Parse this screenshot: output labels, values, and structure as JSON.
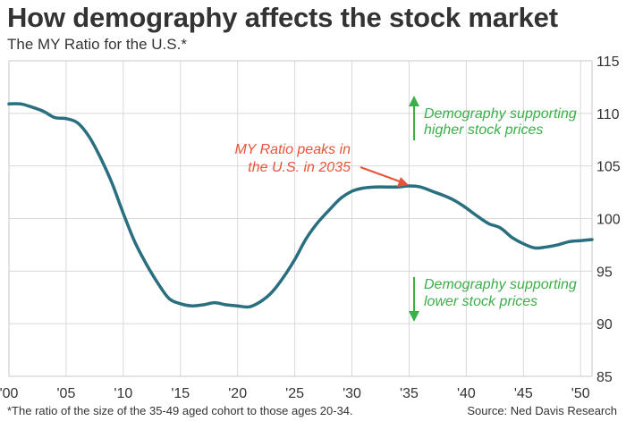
{
  "header": {
    "title": "How demography affects the stock market",
    "subtitle": "The MY Ratio for the U.S.*"
  },
  "footer": {
    "footnote": "*The ratio of the size of the 35-49 aged cohort to those ages 20-34.",
    "source": "Source: Ned Davis Research"
  },
  "colors": {
    "line": "#2a6f7f",
    "grid": "#d9d9d9",
    "frame": "#c8c8c8",
    "green": "#3cae4a",
    "red": "#e8543a"
  },
  "chart_data": {
    "type": "line",
    "title": "How demography affects the stock market",
    "subtitle": "The MY Ratio for the U.S.*",
    "xlim": [
      2000,
      2051
    ],
    "ylim": [
      85,
      115
    ],
    "grid": true,
    "x_ticks": [
      2000,
      2005,
      2010,
      2015,
      2020,
      2025,
      2030,
      2035,
      2040,
      2045,
      2050
    ],
    "x_tick_labels": [
      "'00",
      "'05",
      "'10",
      "'15",
      "'20",
      "'25",
      "'30",
      "'35",
      "'40",
      "'45",
      "'50"
    ],
    "y_ticks": [
      85,
      90,
      95,
      100,
      105,
      110,
      115
    ],
    "y_tick_labels": [
      "85",
      "90",
      "95",
      "100",
      "105",
      "110",
      "115"
    ],
    "series": [
      {
        "x": [
          2000,
          2001,
          2002,
          2003,
          2004,
          2005,
          2006,
          2007,
          2008,
          2009,
          2010,
          2011,
          2012,
          2013,
          2014,
          2015,
          2016,
          2017,
          2018,
          2019,
          2020,
          2021,
          2022,
          2023,
          2024,
          2025,
          2026,
          2027,
          2028,
          2029,
          2030,
          2031,
          2032,
          2033,
          2034,
          2035,
          2036,
          2037,
          2038,
          2039,
          2040,
          2041,
          2042,
          2043,
          2044,
          2045,
          2046,
          2047,
          2048,
          2049,
          2050,
          2051
        ],
        "y": [
          110.9,
          110.9,
          110.6,
          110.2,
          109.6,
          109.5,
          109.1,
          107.8,
          105.8,
          103.4,
          100.5,
          97.8,
          95.7,
          93.9,
          92.4,
          91.9,
          91.7,
          91.8,
          92.0,
          91.8,
          91.7,
          91.6,
          92.1,
          93.0,
          94.4,
          96.1,
          98.1,
          99.6,
          100.8,
          101.9,
          102.6,
          102.9,
          103.0,
          103.0,
          103.0,
          103.1,
          103.0,
          102.6,
          102.2,
          101.7,
          101.0,
          100.2,
          99.5,
          99.1,
          98.2,
          97.6,
          97.2,
          97.3,
          97.5,
          97.8,
          97.9,
          98.0
        ]
      }
    ],
    "annotations": [
      {
        "lines": [
          "Demography supporting",
          "higher stock prices"
        ],
        "arrow": "up",
        "color": "green"
      },
      {
        "lines": [
          "MY Ratio peaks in",
          "the U.S. in 2035"
        ],
        "arrow": "to-point",
        "color": "red",
        "points_to": [
          2035,
          103.1
        ]
      },
      {
        "lines": [
          "Demography supporting",
          "lower stock prices"
        ],
        "arrow": "down",
        "color": "green"
      }
    ]
  }
}
